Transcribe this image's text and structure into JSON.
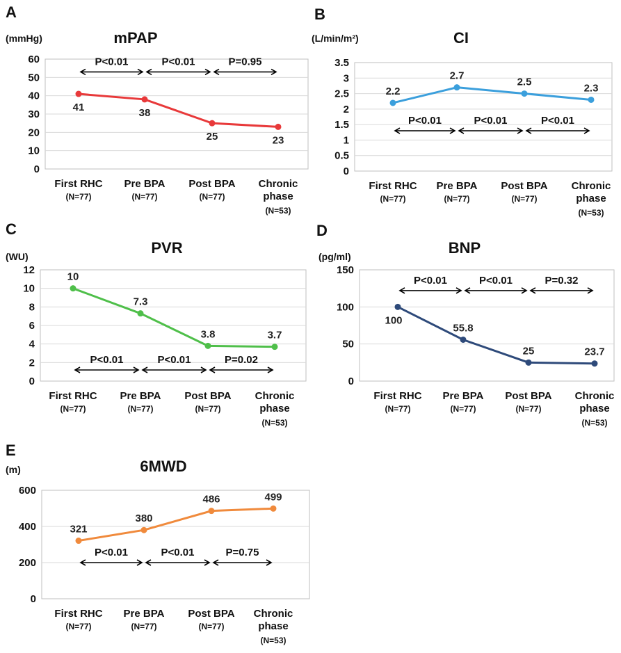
{
  "chart_data": [
    {
      "type": "line",
      "panel": "A",
      "title": "mPAP",
      "unit": "(mmHg)",
      "categories": [
        {
          "label": "First RHC",
          "sublabel": "(N=77)"
        },
        {
          "label": "Pre BPA",
          "sublabel": "(N=77)"
        },
        {
          "label": "Post BPA",
          "sublabel": "(N=77)"
        },
        {
          "label": [
            "Chronic",
            "phase"
          ],
          "sublabel": "(N=53)"
        }
      ],
      "values": [
        41,
        38,
        25,
        23
      ],
      "value_labels": [
        "41",
        "38",
        "25",
        "23"
      ],
      "label_position": "below",
      "yticks": [
        "0",
        "10",
        "20",
        "30",
        "40",
        "50",
        "60"
      ],
      "ylim": [
        0,
        60
      ],
      "color": "#e8393a",
      "comparisons": [
        "P<0.01",
        "P<0.01",
        "P=0.95"
      ],
      "comparison_level": 53
    },
    {
      "type": "line",
      "panel": "B",
      "title": "CI",
      "unit": "(L/min/m²)",
      "categories": [
        {
          "label": "First RHC",
          "sublabel": "(N=77)"
        },
        {
          "label": "Pre BPA",
          "sublabel": "(N=77)"
        },
        {
          "label": "Post BPA",
          "sublabel": "(N=77)"
        },
        {
          "label": [
            "Chronic",
            "phase"
          ],
          "sublabel": "(N=53)"
        }
      ],
      "values": [
        2.2,
        2.7,
        2.5,
        2.3
      ],
      "value_labels": [
        "2.2",
        "2.7",
        "2.5",
        "2.3"
      ],
      "label_position": "above",
      "yticks": [
        "0",
        "0.5",
        "1",
        "1.5",
        "2",
        "2.5",
        "3",
        "3.5"
      ],
      "ylim": [
        0,
        3.5
      ],
      "color": "#3b9fdc",
      "comparisons": [
        "P<0.01",
        "P<0.01",
        "P<0.01"
      ],
      "comparison_level": 1.3
    },
    {
      "type": "line",
      "panel": "C",
      "title": "PVR",
      "unit": "(WU)",
      "categories": [
        {
          "label": "First RHC",
          "sublabel": "(N=77)"
        },
        {
          "label": "Pre BPA",
          "sublabel": "(N=77)"
        },
        {
          "label": "Post BPA",
          "sublabel": "(N=77)"
        },
        {
          "label": [
            "Chronic",
            "phase"
          ],
          "sublabel": "(N=53)"
        }
      ],
      "values": [
        10,
        7.3,
        3.8,
        3.7
      ],
      "value_labels": [
        "10",
        "7.3",
        "3.8",
        "3.7"
      ],
      "label_position": "above",
      "yticks": [
        "0",
        "2",
        "4",
        "6",
        "8",
        "10",
        "12"
      ],
      "ylim": [
        0,
        12
      ],
      "color": "#4fbf4a",
      "comparisons": [
        "P<0.01",
        "P<0.01",
        "P=0.02"
      ],
      "comparison_level": 1.2
    },
    {
      "type": "line",
      "panel": "D",
      "title": "BNP",
      "unit": "(pg/ml)",
      "categories": [
        {
          "label": "First RHC",
          "sublabel": "(N=77)"
        },
        {
          "label": "Pre BPA",
          "sublabel": "(N=77)"
        },
        {
          "label": "Post BPA",
          "sublabel": "(N=77)"
        },
        {
          "label": [
            "Chronic",
            "phase"
          ],
          "sublabel": "(N=53)"
        }
      ],
      "values": [
        100,
        55.8,
        25,
        23.7
      ],
      "value_labels": [
        "100",
        "55.8",
        "25",
        "23.7"
      ],
      "label_position": "mixed",
      "label_positions": [
        "below",
        "above",
        "above",
        "above"
      ],
      "yticks": [
        "0",
        "50",
        "100",
        "150"
      ],
      "ylim": [
        0,
        150
      ],
      "color": "#2e4a7a",
      "comparisons": [
        "P<0.01",
        "P<0.01",
        "P=0.32"
      ],
      "comparison_level": 122
    },
    {
      "type": "line",
      "panel": "E",
      "title": "6MWD",
      "unit": "(m)",
      "categories": [
        {
          "label": "First RHC",
          "sublabel": "(N=77)"
        },
        {
          "label": "Pre BPA",
          "sublabel": "(N=77)"
        },
        {
          "label": "Post BPA",
          "sublabel": "(N=77)"
        },
        {
          "label": [
            "Chronic",
            "phase"
          ],
          "sublabel": "(N=53)"
        }
      ],
      "values": [
        321,
        380,
        486,
        499
      ],
      "value_labels": [
        "321",
        "380",
        "486",
        "499"
      ],
      "label_position": "above",
      "yticks": [
        "0",
        "200",
        "400",
        "600"
      ],
      "ylim": [
        0,
        600
      ],
      "color": "#f08a3c",
      "comparisons": [
        "P<0.01",
        "P<0.01",
        "P=0.75"
      ],
      "comparison_level": 200
    }
  ]
}
